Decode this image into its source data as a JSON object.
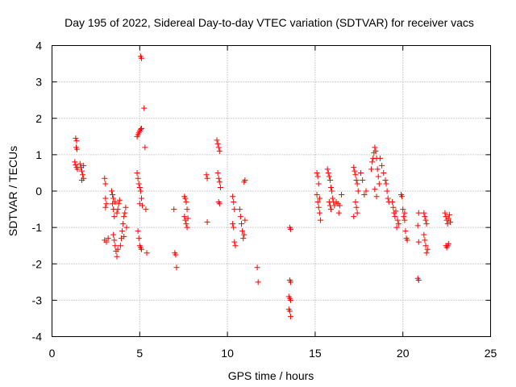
{
  "chart_data": {
    "type": "scatter",
    "title": "Day 195 of 2022, Sidereal Day-to-day VTEC variation (SDTVAR) for receiver vacs",
    "xlabel": "GPS time / hours",
    "ylabel": "SDTVAR / TECUs",
    "xlim": [
      0,
      25
    ],
    "ylim": [
      -4,
      4
    ],
    "xticks": [
      0,
      5,
      10,
      15,
      20,
      25
    ],
    "yticks": [
      -4,
      -3,
      -2,
      -1,
      0,
      1,
      2,
      3,
      4
    ],
    "grid": true,
    "marker": "+",
    "color": "#ff0000",
    "series": [
      {
        "name": "vacs",
        "points": [
          [
            1.35,
            1.45
          ],
          [
            1.4,
            1.38
          ],
          [
            1.38,
            1.2
          ],
          [
            1.42,
            1.15
          ],
          [
            1.3,
            0.8
          ],
          [
            1.35,
            0.72
          ],
          [
            1.4,
            0.65
          ],
          [
            1.45,
            0.6
          ],
          [
            1.6,
            0.75
          ],
          [
            1.65,
            0.65
          ],
          [
            1.7,
            0.55
          ],
          [
            1.75,
            0.45
          ],
          [
            1.8,
            0.35
          ],
          [
            1.7,
            0.3
          ],
          [
            1.8,
            0.7
          ],
          [
            3.0,
            0.35
          ],
          [
            3.05,
            0.2
          ],
          [
            3.05,
            -0.2
          ],
          [
            3.1,
            -0.35
          ],
          [
            3.05,
            -0.45
          ],
          [
            3.0,
            -1.35
          ],
          [
            3.1,
            -1.4
          ],
          [
            3.2,
            -1.3
          ],
          [
            3.4,
            0.0
          ],
          [
            3.45,
            -0.1
          ],
          [
            3.5,
            -0.2
          ],
          [
            3.45,
            -0.35
          ],
          [
            3.5,
            -0.5
          ],
          [
            3.55,
            -0.7
          ],
          [
            3.6,
            -0.3
          ],
          [
            3.5,
            -1.2
          ],
          [
            3.55,
            -1.35
          ],
          [
            3.6,
            -1.5
          ],
          [
            3.65,
            -1.65
          ],
          [
            3.7,
            -1.8
          ],
          [
            3.75,
            -1.6
          ],
          [
            3.7,
            -0.6
          ],
          [
            3.75,
            -0.5
          ],
          [
            3.8,
            -0.35
          ],
          [
            3.85,
            -0.25
          ],
          [
            3.9,
            -1.5
          ],
          [
            3.95,
            -1.3
          ],
          [
            4.0,
            -1.1
          ],
          [
            4.05,
            -0.9
          ],
          [
            4.1,
            -0.7
          ],
          [
            4.15,
            -0.6
          ],
          [
            4.2,
            -0.45
          ],
          [
            4.25,
            -1.0
          ],
          [
            4.1,
            -1.25
          ],
          [
            4.85,
            0.5
          ],
          [
            4.9,
            0.35
          ],
          [
            4.95,
            0.2
          ],
          [
            5.0,
            0.1
          ],
          [
            5.05,
            0.0
          ],
          [
            5.1,
            -0.2
          ],
          [
            5.15,
            -0.4
          ],
          [
            5.0,
            -0.35
          ],
          [
            4.85,
            1.5
          ],
          [
            4.9,
            1.55
          ],
          [
            4.95,
            1.6
          ],
          [
            5.0,
            1.65
          ],
          [
            5.05,
            1.7
          ],
          [
            5.1,
            1.72
          ],
          [
            4.9,
            -1.1
          ],
          [
            4.95,
            -1.3
          ],
          [
            5.0,
            -1.5
          ],
          [
            5.05,
            -1.55
          ],
          [
            5.1,
            -1.6
          ],
          [
            5.05,
            3.7
          ],
          [
            5.1,
            3.65
          ],
          [
            5.25,
            2.28
          ],
          [
            5.3,
            1.2
          ],
          [
            5.35,
            -0.5
          ],
          [
            5.4,
            -1.7
          ],
          [
            6.95,
            -0.5
          ],
          [
            7.0,
            -1.7
          ],
          [
            7.05,
            -1.75
          ],
          [
            7.1,
            -2.1
          ],
          [
            7.55,
            -0.15
          ],
          [
            7.6,
            -0.2
          ],
          [
            7.65,
            -0.3
          ],
          [
            7.7,
            -0.5
          ],
          [
            7.55,
            -0.7
          ],
          [
            7.6,
            -0.8
          ],
          [
            7.65,
            -0.9
          ],
          [
            7.7,
            -1.0
          ],
          [
            7.75,
            -0.75
          ],
          [
            8.8,
            0.45
          ],
          [
            8.85,
            0.35
          ],
          [
            8.85,
            -0.85
          ],
          [
            9.4,
            1.4
          ],
          [
            9.45,
            1.3
          ],
          [
            9.5,
            1.2
          ],
          [
            9.55,
            1.1
          ],
          [
            9.45,
            0.5
          ],
          [
            9.5,
            0.35
          ],
          [
            9.55,
            0.25
          ],
          [
            9.6,
            0.1
          ],
          [
            9.5,
            -0.3
          ],
          [
            9.55,
            -0.35
          ],
          [
            10.3,
            -0.15
          ],
          [
            10.35,
            -0.3
          ],
          [
            10.4,
            -0.5
          ],
          [
            10.3,
            -0.9
          ],
          [
            10.35,
            -1.0
          ],
          [
            10.4,
            -1.4
          ],
          [
            10.45,
            -1.5
          ],
          [
            10.7,
            -0.5
          ],
          [
            10.75,
            -0.7
          ],
          [
            10.8,
            -0.9
          ],
          [
            10.85,
            -1.1
          ],
          [
            10.9,
            -1.3
          ],
          [
            10.95,
            -1.2
          ],
          [
            11.0,
            -0.8
          ],
          [
            11.0,
            0.3
          ],
          [
            10.95,
            0.25
          ],
          [
            11.7,
            -2.1
          ],
          [
            11.75,
            -2.5
          ],
          [
            13.55,
            -1.0
          ],
          [
            13.6,
            -1.05
          ],
          [
            13.55,
            -2.45
          ],
          [
            13.6,
            -2.5
          ],
          [
            13.5,
            -2.9
          ],
          [
            13.55,
            -2.95
          ],
          [
            13.6,
            -3.0
          ],
          [
            13.5,
            -3.25
          ],
          [
            13.55,
            -3.3
          ],
          [
            13.6,
            -3.45
          ],
          [
            15.1,
            0.5
          ],
          [
            15.15,
            0.4
          ],
          [
            15.2,
            0.2
          ],
          [
            15.1,
            -0.1
          ],
          [
            15.15,
            -0.3
          ],
          [
            15.2,
            -0.45
          ],
          [
            15.25,
            -0.6
          ],
          [
            15.3,
            -0.8
          ],
          [
            15.25,
            -0.2
          ],
          [
            15.7,
            0.6
          ],
          [
            15.75,
            0.5
          ],
          [
            15.8,
            0.4
          ],
          [
            15.85,
            0.3
          ],
          [
            15.9,
            0.1
          ],
          [
            15.95,
            0.0
          ],
          [
            16.0,
            -0.2
          ],
          [
            16.05,
            -0.3
          ],
          [
            15.8,
            -0.3
          ],
          [
            15.85,
            -0.4
          ],
          [
            15.9,
            -0.5
          ],
          [
            16.1,
            -0.4
          ],
          [
            16.2,
            -0.3
          ],
          [
            16.3,
            -0.35
          ],
          [
            16.4,
            -0.4
          ],
          [
            16.5,
            -0.1
          ],
          [
            16.35,
            -0.6
          ],
          [
            17.2,
            0.65
          ],
          [
            17.25,
            0.55
          ],
          [
            17.3,
            0.45
          ],
          [
            17.35,
            0.3
          ],
          [
            17.4,
            0.2
          ],
          [
            17.45,
            0.0
          ],
          [
            17.3,
            -0.3
          ],
          [
            17.35,
            -0.45
          ],
          [
            17.4,
            -0.6
          ],
          [
            17.2,
            -0.7
          ],
          [
            17.6,
            0.5
          ],
          [
            17.7,
            0.3
          ],
          [
            17.8,
            -0.1
          ],
          [
            17.9,
            0.0
          ],
          [
            18.2,
            0.6
          ],
          [
            18.25,
            0.8
          ],
          [
            18.3,
            0.9
          ],
          [
            18.35,
            1.05
          ],
          [
            18.4,
            1.2
          ],
          [
            18.45,
            1.1
          ],
          [
            18.5,
            0.9
          ],
          [
            18.55,
            0.6
          ],
          [
            18.6,
            0.4
          ],
          [
            18.65,
            0.2
          ],
          [
            18.4,
            0.05
          ],
          [
            18.5,
            -0.15
          ],
          [
            18.7,
            0.9
          ],
          [
            18.8,
            0.7
          ],
          [
            18.9,
            0.5
          ],
          [
            19.0,
            0.3
          ],
          [
            19.05,
            0.2
          ],
          [
            19.1,
            0.0
          ],
          [
            19.15,
            -0.2
          ],
          [
            19.2,
            -0.3
          ],
          [
            19.4,
            -0.3
          ],
          [
            19.45,
            -0.45
          ],
          [
            19.5,
            -0.6
          ],
          [
            19.55,
            -0.7
          ],
          [
            19.6,
            -0.55
          ],
          [
            19.7,
            -0.8
          ],
          [
            19.75,
            -0.9
          ],
          [
            19.65,
            -1.0
          ],
          [
            19.9,
            -0.1
          ],
          [
            19.95,
            -0.15
          ],
          [
            20.0,
            -0.5
          ],
          [
            20.05,
            -0.7
          ],
          [
            20.1,
            -0.8
          ],
          [
            20.15,
            -1.1
          ],
          [
            20.2,
            -1.3
          ],
          [
            20.25,
            -1.35
          ],
          [
            20.1,
            -0.6
          ],
          [
            20.9,
            -0.6
          ],
          [
            20.85,
            -0.95
          ],
          [
            20.9,
            -1.4
          ],
          [
            20.85,
            -2.4
          ],
          [
            20.9,
            -2.45
          ],
          [
            21.2,
            -0.6
          ],
          [
            21.25,
            -0.7
          ],
          [
            21.3,
            -0.8
          ],
          [
            21.35,
            -0.9
          ],
          [
            21.2,
            -1.2
          ],
          [
            21.25,
            -1.35
          ],
          [
            21.3,
            -1.5
          ],
          [
            21.35,
            -1.7
          ],
          [
            21.4,
            -1.6
          ],
          [
            22.4,
            -0.6
          ],
          [
            22.45,
            -0.7
          ],
          [
            22.5,
            -0.8
          ],
          [
            22.55,
            -0.9
          ],
          [
            22.6,
            -0.75
          ],
          [
            22.65,
            -0.65
          ],
          [
            22.7,
            -0.85
          ],
          [
            22.45,
            -1.5
          ],
          [
            22.5,
            -1.55
          ],
          [
            22.55,
            -1.5
          ],
          [
            22.6,
            -1.45
          ]
        ]
      }
    ]
  }
}
